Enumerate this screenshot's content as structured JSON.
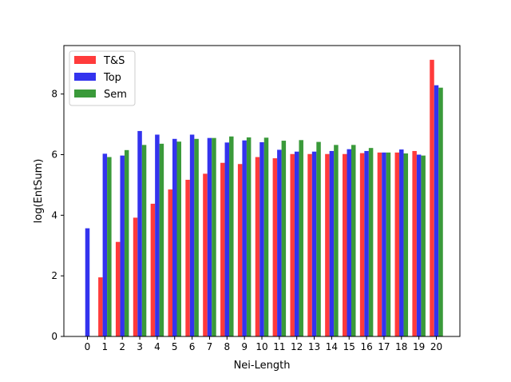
{
  "chart_data": {
    "type": "bar",
    "title": "",
    "xlabel": "Nei-Length",
    "ylabel": "log(EntSum)",
    "ylim": [
      0,
      9.6
    ],
    "yticks": [
      0,
      2,
      4,
      6,
      8
    ],
    "grid": false,
    "legend_position": "top-left",
    "categories": [
      "0",
      "1",
      "2",
      "3",
      "4",
      "5",
      "6",
      "7",
      "8",
      "9",
      "10",
      "11",
      "12",
      "13",
      "14",
      "15",
      "16",
      "17",
      "18",
      "19",
      "20"
    ],
    "series": [
      {
        "name": "T&S",
        "color": "#ff3b3b",
        "values": [
          0,
          1.95,
          3.12,
          3.92,
          4.38,
          4.85,
          5.17,
          5.37,
          5.73,
          5.69,
          5.92,
          5.88,
          6.02,
          6.02,
          6.02,
          6.02,
          6.05,
          6.07,
          6.07,
          6.12,
          9.13
        ]
      },
      {
        "name": "Top",
        "color": "#3333ee",
        "values": [
          3.57,
          6.03,
          5.97,
          6.78,
          6.66,
          6.52,
          6.66,
          6.55,
          6.4,
          6.47,
          6.41,
          6.16,
          6.1,
          6.1,
          6.12,
          6.18,
          6.12,
          6.07,
          6.17,
          6.0,
          8.29
        ]
      },
      {
        "name": "Sem",
        "color": "#3a9a3a",
        "values": [
          0,
          5.92,
          6.15,
          6.32,
          6.36,
          6.43,
          6.52,
          6.55,
          6.6,
          6.57,
          6.56,
          6.46,
          6.48,
          6.42,
          6.32,
          6.32,
          6.22,
          6.07,
          6.04,
          5.97,
          8.21
        ]
      }
    ]
  }
}
